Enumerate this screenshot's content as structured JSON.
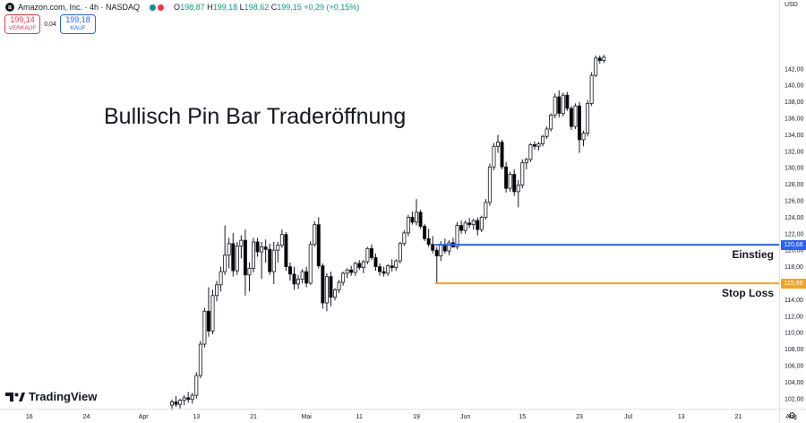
{
  "header": {
    "symbol_title": "Amazon.com, Inc. · 4h · NASDAQ",
    "status_dot_color": "#089981",
    "flag_dot_color": "#f23645",
    "ohlc": [
      {
        "k": "O",
        "v": "198,87"
      },
      {
        "k": "H",
        "v": "199,18"
      },
      {
        "k": "L",
        "v": "198,62"
      },
      {
        "k": "C",
        "v": "199,15"
      }
    ],
    "change": "+0,29 (+0,15%)"
  },
  "trade": {
    "sell_price": "199,14",
    "sell_label": "VERKAUF",
    "spread": "0,04",
    "buy_price": "199,18",
    "buy_label": "KAUF"
  },
  "branding": {
    "logo_text": "TradingView"
  },
  "chart_data": {
    "type": "candlestick",
    "title": "Bullisch Pin Bar Traderöffnung",
    "currency": "USD",
    "ylim": [
      101,
      143.6
    ],
    "y_ticks": [
      "102,00",
      "104,00",
      "106,00",
      "108,00",
      "110,00",
      "112,00",
      "114,00",
      "116,00",
      "118,00",
      "120,00",
      "122,00",
      "124,00",
      "126,00",
      "128,00",
      "130,00",
      "132,00",
      "134,00",
      "136,00",
      "138,00",
      "140,00",
      "142,00"
    ],
    "x_ticks": [
      {
        "label": "16",
        "bar": -35
      },
      {
        "label": "24",
        "bar": -21
      },
      {
        "label": "Apr",
        "bar": -7
      },
      {
        "label": "13",
        "bar": 6
      },
      {
        "label": "21",
        "bar": 20
      },
      {
        "label": "Mai",
        "bar": 33
      },
      {
        "label": "11",
        "bar": 46
      },
      {
        "label": "19",
        "bar": 60
      },
      {
        "label": "Jun",
        "bar": 72
      },
      {
        "label": "15",
        "bar": 86
      },
      {
        "label": "23",
        "bar": 100
      },
      {
        "label": "Jul",
        "bar": 112
      },
      {
        "label": "13",
        "bar": 125
      },
      {
        "label": "21",
        "bar": 139
      },
      {
        "label": "Aug",
        "bar": 152
      }
    ],
    "colors": {
      "up_fill": "#ffffff",
      "down_fill": "#000000",
      "outline": "#131722"
    },
    "candles": [
      [
        101.2,
        101.9,
        100.6,
        101.6
      ],
      [
        101.6,
        102.3,
        101.0,
        101.3
      ],
      [
        101.3,
        102.0,
        100.8,
        101.8
      ],
      [
        101.8,
        102.4,
        101.2,
        102.1
      ],
      [
        102.1,
        102.8,
        101.5,
        101.9
      ],
      [
        101.9,
        102.7,
        101.4,
        102.4
      ],
      [
        102.4,
        105.2,
        102.0,
        104.8
      ],
      [
        104.8,
        109.0,
        104.5,
        108.6
      ],
      [
        108.6,
        113.0,
        108.2,
        112.6
      ],
      [
        112.6,
        115.5,
        109.5,
        110.2
      ],
      [
        110.2,
        115.2,
        109.8,
        114.5
      ],
      [
        114.5,
        116.3,
        113.8,
        115.8
      ],
      [
        115.8,
        118.0,
        115.0,
        117.4
      ],
      [
        117.4,
        123.0,
        117.0,
        119.4
      ],
      [
        119.4,
        121.5,
        117.8,
        120.8
      ],
      [
        120.8,
        122.1,
        116.8,
        117.5
      ],
      [
        117.5,
        121.0,
        117.0,
        120.5
      ],
      [
        120.5,
        121.8,
        119.0,
        121.2
      ],
      [
        121.2,
        122.5,
        114.5,
        117.0
      ],
      [
        117.0,
        118.5,
        115.0,
        117.8
      ],
      [
        117.8,
        121.5,
        117.3,
        121.0
      ],
      [
        121.0,
        121.5,
        119.2,
        119.8
      ],
      [
        119.8,
        121.0,
        116.5,
        120.4
      ],
      [
        120.4,
        121.3,
        118.5,
        120.1
      ],
      [
        120.1,
        120.8,
        117.0,
        117.4
      ],
      [
        117.4,
        121.0,
        115.9,
        120.0
      ],
      [
        120.0,
        121.0,
        118.5,
        120.6
      ],
      [
        120.6,
        122.5,
        120.3,
        121.9
      ],
      [
        121.9,
        122.2,
        117.5,
        118.0
      ],
      [
        118.0,
        118.5,
        116.3,
        117.1
      ],
      [
        117.1,
        118.0,
        115.2,
        115.9
      ],
      [
        115.9,
        117.0,
        115.3,
        116.5
      ],
      [
        116.5,
        117.7,
        116.0,
        117.4
      ],
      [
        117.4,
        118.0,
        115.5,
        116.0
      ],
      [
        116.0,
        121.1,
        115.8,
        120.7
      ],
      [
        120.7,
        123.5,
        120.4,
        123.1
      ],
      [
        123.1,
        124.0,
        117.8,
        118.1
      ],
      [
        118.1,
        118.4,
        112.9,
        113.6
      ],
      [
        113.6,
        117.2,
        112.6,
        116.8
      ],
      [
        116.8,
        117.4,
        113.2,
        114.3
      ],
      [
        114.3,
        115.4,
        113.9,
        115.2
      ],
      [
        115.2,
        116.4,
        114.8,
        116.1
      ],
      [
        116.1,
        117.4,
        115.7,
        117.2
      ],
      [
        117.2,
        117.8,
        116.6,
        117.6
      ],
      [
        117.6,
        118.1,
        116.9,
        117.3
      ],
      [
        117.3,
        118.6,
        116.9,
        118.4
      ],
      [
        118.4,
        118.8,
        117.6,
        117.9
      ],
      [
        117.9,
        118.8,
        117.2,
        118.6
      ],
      [
        118.6,
        120.4,
        118.3,
        120.2
      ],
      [
        120.2,
        120.7,
        118.8,
        119.1
      ],
      [
        119.1,
        119.6,
        117.5,
        118.0
      ],
      [
        118.0,
        118.4,
        116.9,
        117.4
      ],
      [
        117.4,
        118.0,
        116.8,
        117.2
      ],
      [
        117.2,
        118.3,
        116.9,
        118.1
      ],
      [
        118.1,
        118.9,
        117.4,
        117.9
      ],
      [
        117.9,
        118.9,
        117.5,
        118.7
      ],
      [
        118.7,
        121.0,
        118.4,
        120.8
      ],
      [
        120.8,
        122.4,
        120.5,
        122.1
      ],
      [
        122.1,
        124.3,
        121.7,
        124.0
      ],
      [
        124.0,
        124.7,
        123.1,
        123.4
      ],
      [
        123.4,
        126.2,
        123.0,
        124.6
      ],
      [
        124.6,
        124.9,
        122.6,
        122.9
      ],
      [
        122.9,
        123.2,
        121.1,
        121.4
      ],
      [
        121.4,
        122.6,
        120.4,
        120.7
      ],
      [
        120.7,
        121.7,
        119.6,
        120.0
      ],
      [
        120.0,
        120.4,
        115.9,
        119.3
      ],
      [
        119.3,
        121.1,
        118.7,
        120.6
      ],
      [
        120.6,
        121.4,
        119.6,
        119.9
      ],
      [
        119.9,
        121.2,
        119.4,
        120.9
      ],
      [
        120.9,
        121.5,
        120.3,
        120.4
      ],
      [
        120.4,
        123.4,
        120.1,
        123.0
      ],
      [
        123.0,
        123.6,
        122.0,
        122.4
      ],
      [
        122.4,
        123.6,
        122.0,
        123.3
      ],
      [
        123.3,
        123.9,
        122.7,
        123.1
      ],
      [
        123.1,
        123.8,
        122.5,
        123.6
      ],
      [
        123.6,
        124.0,
        121.8,
        122.5
      ],
      [
        122.5,
        124.2,
        122.2,
        124.0
      ],
      [
        124.0,
        126.2,
        123.7,
        125.8
      ],
      [
        125.8,
        130.5,
        125.4,
        130.1
      ],
      [
        130.1,
        133.0,
        129.7,
        132.6
      ],
      [
        132.6,
        134.0,
        131.8,
        133.1
      ],
      [
        133.1,
        133.4,
        129.8,
        130.1
      ],
      [
        130.1,
        130.7,
        127.0,
        127.5
      ],
      [
        127.5,
        129.5,
        127.1,
        129.2
      ],
      [
        129.2,
        129.8,
        126.6,
        127.1
      ],
      [
        127.1,
        128.5,
        125.2,
        127.9
      ],
      [
        127.9,
        131.0,
        127.5,
        130.6
      ],
      [
        130.6,
        131.2,
        129.8,
        131.0
      ],
      [
        131.0,
        133.0,
        130.7,
        132.8
      ],
      [
        132.8,
        133.2,
        132.2,
        132.6
      ],
      [
        132.6,
        133.1,
        132.1,
        132.9
      ],
      [
        132.9,
        134.0,
        132.6,
        133.8
      ],
      [
        133.8,
        135.0,
        133.5,
        134.7
      ],
      [
        134.7,
        136.6,
        134.4,
        136.4
      ],
      [
        136.4,
        139.0,
        136.0,
        138.6
      ],
      [
        138.6,
        139.4,
        136.1,
        136.6
      ],
      [
        136.6,
        139.1,
        136.2,
        138.8
      ],
      [
        138.8,
        139.2,
        136.9,
        137.2
      ],
      [
        137.2,
        137.5,
        134.6,
        135.0
      ],
      [
        135.0,
        137.8,
        134.7,
        137.5
      ],
      [
        137.5,
        138.0,
        131.8,
        133.4
      ],
      [
        133.4,
        134.5,
        132.6,
        134.2
      ],
      [
        134.2,
        138.2,
        133.8,
        137.8
      ],
      [
        137.8,
        141.6,
        137.5,
        141.2
      ],
      [
        141.2,
        143.6,
        141.0,
        143.3
      ],
      [
        143.3,
        143.6,
        142.6,
        143.0
      ],
      [
        143.0,
        143.7,
        142.7,
        143.4
      ]
    ],
    "levels": [
      {
        "name": "Einstieg",
        "value": 120.66,
        "label": "120,66",
        "color": "#2962ff",
        "start_bar": 65
      },
      {
        "name": "Stop Loss",
        "value": 115.99,
        "label": "115,99",
        "color": "#f7a21b",
        "start_bar": 65
      }
    ]
  }
}
